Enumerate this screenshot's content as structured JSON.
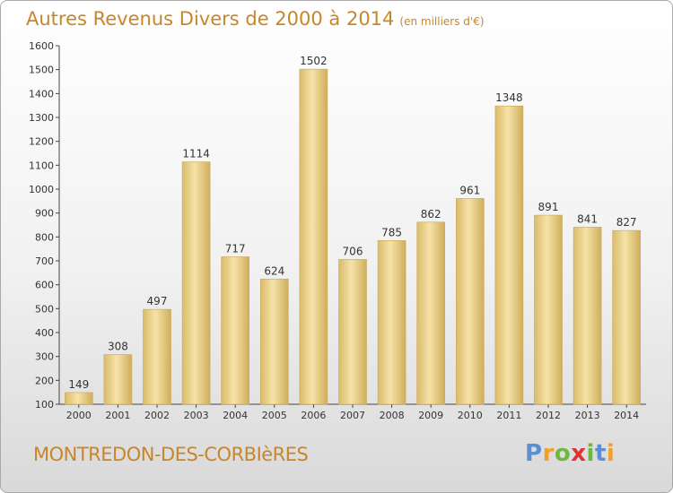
{
  "header": {
    "title": "Autres Revenus Divers de 2000 à 2014",
    "subtitle": "(en milliers d'€)"
  },
  "footer": {
    "location": "MONTREDON-DES-CORBIèRES",
    "brand": {
      "letters": [
        "P",
        "r",
        "o",
        "x",
        "i",
        "t",
        "i"
      ]
    }
  },
  "colors": {
    "bar_light": "#f3dc9a",
    "bar_dark": "#d6b867",
    "title": "#c8862a"
  },
  "chart_data": {
    "type": "bar",
    "title": "Autres Revenus Divers de 2000 à 2014",
    "subtitle": "(en milliers d'€)",
    "xlabel": "",
    "ylabel": "",
    "categories": [
      "2000",
      "2001",
      "2002",
      "2003",
      "2004",
      "2005",
      "2006",
      "2007",
      "2008",
      "2009",
      "2010",
      "2011",
      "2012",
      "2013",
      "2014"
    ],
    "values": [
      149,
      308,
      497,
      1114,
      717,
      624,
      1502,
      706,
      785,
      862,
      961,
      1348,
      891,
      841,
      827
    ],
    "ylim": [
      100,
      1600
    ],
    "yticks": [
      100,
      200,
      300,
      400,
      500,
      600,
      700,
      800,
      900,
      1000,
      1100,
      1200,
      1300,
      1400,
      1500,
      1600
    ],
    "grid": false,
    "legend": "none"
  }
}
